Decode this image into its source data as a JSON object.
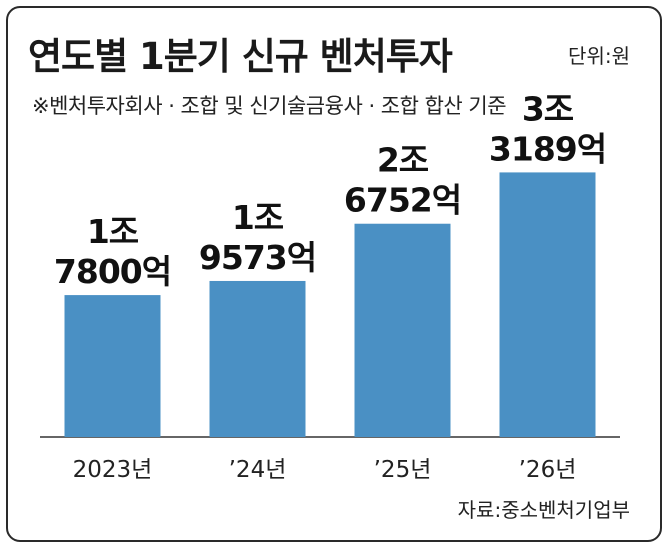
{
  "title": "연도별 1분기 신규 벤처투자",
  "unit_label": "단위:원",
  "note": "※벤처투자회사 · 조합 및 신기술금융사 · 조합 합산 기준",
  "source": "자료:중소벤처기업부",
  "chart_data": {
    "type": "bar",
    "title": "연도별 1분기 신규 벤처투자",
    "categories": [
      "2023년",
      "’24년",
      "’25년",
      "’26년"
    ],
    "values": [
      17800,
      19573,
      26752,
      33189
    ],
    "value_labels": [
      [
        "1조",
        "7800억"
      ],
      [
        "1조",
        "9573억"
      ],
      [
        "2조",
        "6752억"
      ],
      [
        "3조",
        "3189억"
      ]
    ],
    "unit": "억원",
    "ylim": [
      0,
      36000
    ],
    "grid": false,
    "legend": "none",
    "colors": {
      "bar": "#4a90c4",
      "axis": "#333333",
      "text": "#111111"
    }
  }
}
